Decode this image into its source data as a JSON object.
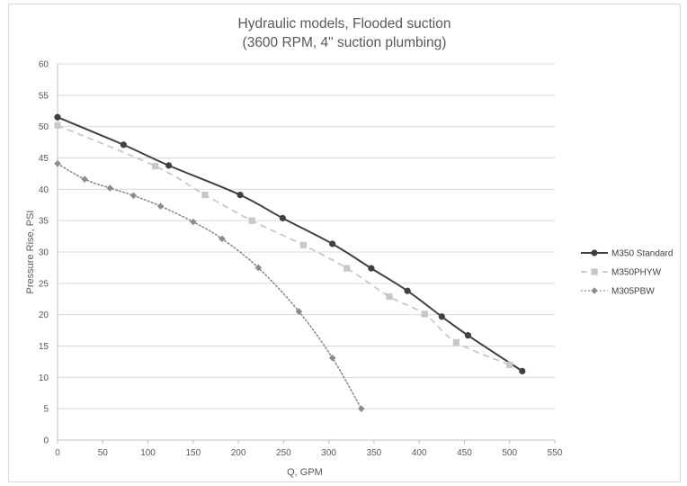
{
  "chart_data": {
    "type": "line",
    "title": "Hydraulic models, Flooded suction",
    "subtitle": "(3600 RPM, 4\" suction plumbing)",
    "xlabel": "Q, GPM",
    "ylabel": "Pressure Rise, PSI",
    "xlim": [
      0,
      550
    ],
    "ylim": [
      0,
      60
    ],
    "x_ticks": [
      0,
      50,
      100,
      150,
      200,
      250,
      300,
      350,
      400,
      450,
      500,
      550
    ],
    "y_ticks": [
      0,
      5,
      10,
      15,
      20,
      25,
      30,
      35,
      40,
      45,
      50,
      55,
      60
    ],
    "grid": "horizontal",
    "legend_position": "right",
    "series": [
      {
        "name": "M350 Standard",
        "color": "#404040",
        "line_style": "solid",
        "marker": "circle",
        "points": [
          [
            0,
            51.5
          ],
          [
            73,
            47.1
          ],
          [
            123,
            43.8
          ],
          [
            202,
            39.1
          ],
          [
            249,
            35.4
          ],
          [
            304,
            31.3
          ],
          [
            347,
            27.4
          ],
          [
            387,
            23.8
          ],
          [
            425,
            19.7
          ],
          [
            454,
            16.7
          ],
          [
            514,
            11.0
          ]
        ]
      },
      {
        "name": "M350PHYW",
        "color": "#c8c8c8",
        "line_style": "dashed",
        "marker": "square",
        "points": [
          [
            0,
            50.2
          ],
          [
            108,
            43.7
          ],
          [
            163,
            39.1
          ],
          [
            215,
            35.0
          ],
          [
            272,
            31.1
          ],
          [
            320,
            27.4
          ],
          [
            367,
            22.9
          ],
          [
            406,
            20.1
          ],
          [
            441,
            15.6
          ],
          [
            500,
            12.0
          ]
        ]
      },
      {
        "name": "M305PBW",
        "color": "#8c8c8c",
        "line_style": "dotted",
        "marker": "diamond",
        "points": [
          [
            0,
            44.1
          ],
          [
            30,
            41.6
          ],
          [
            58,
            40.2
          ],
          [
            84,
            39.0
          ],
          [
            114,
            37.3
          ],
          [
            150,
            34.8
          ],
          [
            182,
            32.1
          ],
          [
            222,
            27.5
          ],
          [
            267,
            20.5
          ],
          [
            304,
            13.1
          ],
          [
            336,
            5.0
          ]
        ]
      }
    ]
  }
}
